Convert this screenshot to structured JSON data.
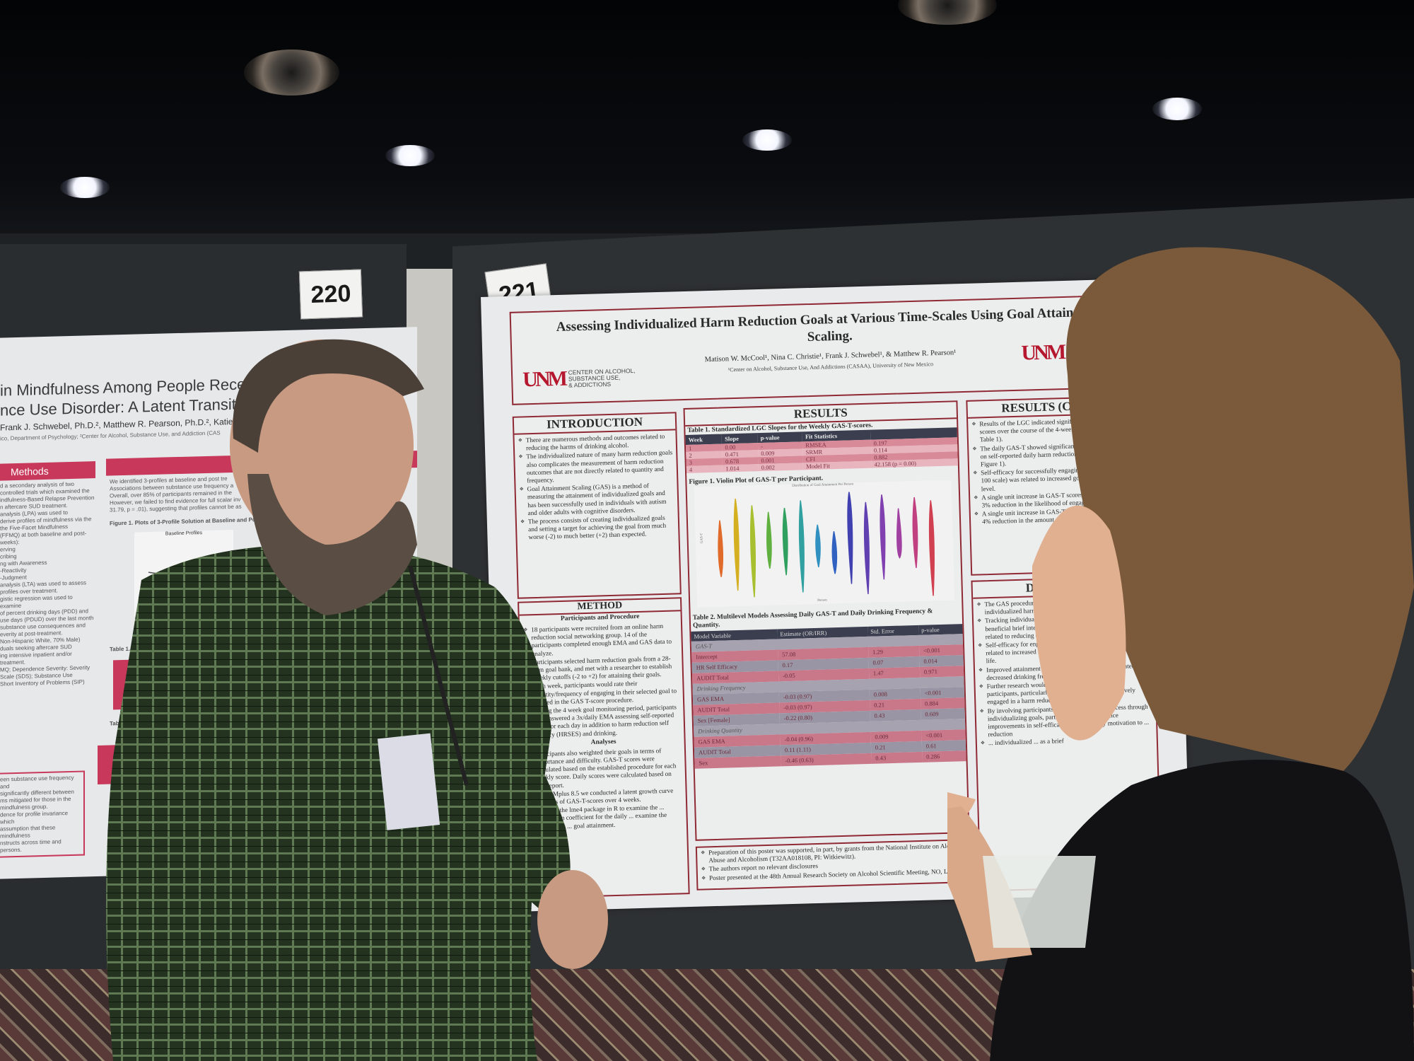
{
  "scene": {
    "board_numbers": [
      "220",
      "221"
    ]
  },
  "left_poster": {
    "title_line1": "in Mindfulness Among People Receiving Tre",
    "title_line2": "nce Use Disorder:  A Latent Transition Ana",
    "authors": "Frank J. Schwebel, Ph.D.², Matthew R. Pearson, Ph.D.², Katie Witk",
    "affiliation": "ico, Department of Psychology; ²Center for Alcohol, Substance Use, and Addiction (CAS",
    "methods_header": "Methods",
    "results_header": "Res",
    "figure_caption": "Figure 1. Plots of 3-Profile Solution at Baseline and Post-Treatm",
    "chart_title": "Baseline Profiles",
    "table_caption_1": "Table 1. Transition Probabilities from Baseline to",
    "table_caption_2": "Table 2. Association of",
    "methods_text": [
      "d a secondary analysis of two",
      "controlled trials which examined the",
      "indfulness-Based Relapse Prevention",
      "n aftercare SUD treatment.",
      "analysis (LPA) was used to",
      "derive profiles of mindfulness via the",
      "the Five-Facet Mindfulness",
      "(FFMQ) at both baseline and post-",
      "weeks):",
      "erving",
      "cribing",
      "ng with Awareness",
      "-Reactivity",
      "-Judgment",
      "analysis (LTA) was used to assess",
      "profiles over treatment.",
      "gistic regression was used to examine",
      "of percent drinking days (PDD) and",
      "use days (PDUD) over the last month",
      "substance use consequences and",
      "everity at post-treatment.",
      "Non-Hispanic White, 70% Male)",
      "duals seeking aftercare SUD",
      "ing intensive inpatient and/or",
      "treatment.",
      "MQ; Dependence Severity: Severity",
      "Scale (SDS); Substance Use",
      "Short Inventory of Problems (SIP)"
    ],
    "results_text": [
      "We identified 3-profiles at baseline and post tre",
      "Associations between substance use frequency a",
      "Overall, over 85% of participants remained in the",
      "However, we failed to find evidence for full scalar inv",
      "31.79, p = .01), suggesting that profiles cannot be as"
    ],
    "conclusion_text": [
      "een substance use frequency and",
      "significantly different between",
      "ms mitigated for those in the",
      "mindfulness group.",
      "dence for profile invariance which",
      "assumption that these mindfulness",
      "nstructs across time and persons."
    ]
  },
  "poster": {
    "title": "Assessing Individualized Harm Reduction Goals at Various Time-Scales Using Goal Attainment Scaling.",
    "authors": "Matison W. McCool¹, Nina C. Christie¹, Frank J. Schwebel¹, & Matthew R. Pearson¹",
    "affiliation": "¹Center on Alcohol, Substance Use, And Addictions (CASAA), University of New Mexico",
    "logo": {
      "mark": "UNM",
      "line1": "CENTER ON ALCOHOL,",
      "line2": "SUBSTANCE USE,",
      "line3": "& ADDICTIONS"
    },
    "introduction": {
      "header": "INTRODUCTION",
      "bullets": [
        "There are numerous methods and outcomes related to reducing the harms of drinking alcohol.",
        "The individualized nature of many harm reduction goals also complicates the measurement of harm reduction outcomes that are not directly related to quantity and frequency.",
        "Goal Attainment Scaling (GAS) is a method of measuring the attainment of individualized goals and has been successfully used in individuals with autism and older adults with cognitive disorders.",
        "The process consists of creating individualized goals and setting a target for achieving the goal from much worse (-2) to much better (+2) than expected."
      ]
    },
    "method": {
      "header": "METHOD",
      "sub1": "Participants and Procedure",
      "bullets1": [
        "18 participants were recruited from an online harm reduction social networking group. 14 of the participants completed enough EMA and GAS data to analyze.",
        "Participants selected harm reduction goals from a 28-item goal bank, and met with a researcher to establish weekly cutoffs (-2 to +2) for attaining their goals.",
        "Each week, participants would rate their quantity/frequency of engaging in their selected goal to be used in the GAS T-score procedure.",
        "During the 4 week goal monitoring period, participants also answered a 3x/daily EMA assessing self-reported GAS for each day in addition to harm reduction self efficacy (HRSES) and drinking."
      ],
      "sub2": "Analyses",
      "bullets2": [
        "Participants also weighted their goals in terms of importance and difficulty. GAS-T scores were calculated based on the established procedure for each weekly score. Daily scores were calculated based on self-report.",
        "Using Mplus 8.5 we conducted a latent growth curve analyses of GAS-T-scores over 4 weeks.",
        "We used the lme4 package in R to examine the ... correlation coefficient for the daily ... examine the hypotheses ... goal attainment."
      ]
    },
    "results": {
      "header": "RESULTS",
      "table1": {
        "caption": "Table 1. Standardized LGC Slopes for the Weekly GAS-T-scores.",
        "columns": [
          "Week",
          "Slope",
          "p-value",
          "Fit Statistics",
          ""
        ],
        "rows": [
          [
            "1",
            "0.00",
            "-",
            "RMSEA",
            "0.197"
          ],
          [
            "2",
            "0.471",
            "0.009",
            "SRMR",
            "0.114"
          ],
          [
            "3",
            "0.678",
            "0.001",
            "CFI",
            "0.882"
          ],
          [
            "4",
            "1.014",
            "0.002",
            "Model Fit",
            "42.158 (p = 0.00)"
          ]
        ]
      },
      "figure1": {
        "caption": "Figure 1. Violin Plot of GAS-T per Participant.",
        "plot_title": "Distribution of Goal Attainment Per Person",
        "xlabel": "Person",
        "ylabel": "GAS-T",
        "colors": [
          "#e06a2a",
          "#d4b020",
          "#a8c030",
          "#60b040",
          "#30a060",
          "#30a0a0",
          "#3090c0",
          "#3060c0",
          "#4040b0",
          "#6040b0",
          "#8040b0",
          "#a040a0",
          "#c04080",
          "#d04050"
        ]
      },
      "table2": {
        "caption": "Table 2. Multilevel Models Assessing Daily GAS-T and Daily Drinking Frequency & Quantity.",
        "columns": [
          "Model Variable",
          "Estimate (OR/IRR)",
          "Std. Error",
          "p-value"
        ],
        "sections": [
          {
            "name": "GAS-T",
            "rows": [
              [
                "Intercept",
                "57.08",
                "1.29",
                "<0.001"
              ],
              [
                "HR Self Efficacy",
                "0.17",
                "0.07",
                "0.014"
              ],
              [
                "AUDIT Total",
                "-0.05",
                "1.47",
                "0.971"
              ]
            ]
          },
          {
            "name": "Drinking Frequency",
            "rows": [
              [
                "GAS EMA",
                "-0.03 (0.97)",
                "0.008",
                "<0.001"
              ],
              [
                "AUDIT Total",
                "-0.03 (0.97)",
                "0.21",
                "0.884"
              ],
              [
                "Sex [Female]",
                "-0.22 (0.80)",
                "0.43",
                "0.609"
              ]
            ]
          },
          {
            "name": "Drinking Quantity",
            "rows": [
              [
                "GAS EMA",
                "-0.04 (0.96)",
                "0.009",
                "<0.001"
              ],
              [
                "AUDIT Total",
                "0.11 (1.11)",
                "0.21",
                "0.61"
              ],
              [
                "Sex",
                "-0.46 (0.63)",
                "0.43",
                "0.286"
              ]
            ]
          }
        ]
      }
    },
    "footer": [
      "Preparation of this poster was supported, in part, by grants from the National Institute on Alcohol Abuse and Alcoholism (T32AA018108, PI: Witkiewitz).",
      "The authors report no relevant disclosures",
      "Poster presented at the 48th Annual Research Society on Alcohol Scientific Meeting, NO, LA."
    ],
    "results_contd": {
      "header": "RESULTS (CONT’D)",
      "bullets": [
        "Results of the LGC indicated significant growth in GAS-T-scores over the course of the 4-week tracking period (See Table 1).",
        "The daily GAS-T showed significant within person variability on self-reported daily harm reduction goal attainment (See Figure 1).",
        "Self-efficacy for successfully engaging in harm reduction (0-100 scale) was related to increased goal attainment at the daily level.",
        "A single unit increase in GAS-T scores was associated with a 3% reduction in the likelihood of engaging in a drinking day.",
        "A single unit increase in GAS-T scores was associated with a 4% reduction in the amount of alcohol consumed daily."
      ]
    },
    "discussion": {
      "header": "DISCUSSION",
      "bullets": [
        "The GAS procedure may be a useful method to measure individualized harm reduction outcomes.",
        "Tracking individualized harm reduction goals daily may be a beneficial brief intervention to help individuals achieve goals related to reducing drinking harms.",
        "Self-efficacy for engaging in harm reduction behaviors was related to increased attainment of harm reduction goals in daily life.",
        "Improved attainment of harm reduction goals was related to decreased drinking frequency and quantity.",
        "Further research would benefit from including more participants, particularly individuals who are not actively engaged in a harm reduction social network.",
        "By involving participants in the data curation process through individualizing goals, participants may experience improvements in self-efficacy and potentially motivation to ... reduction",
        "... individualized ... as a brief"
      ]
    }
  }
}
